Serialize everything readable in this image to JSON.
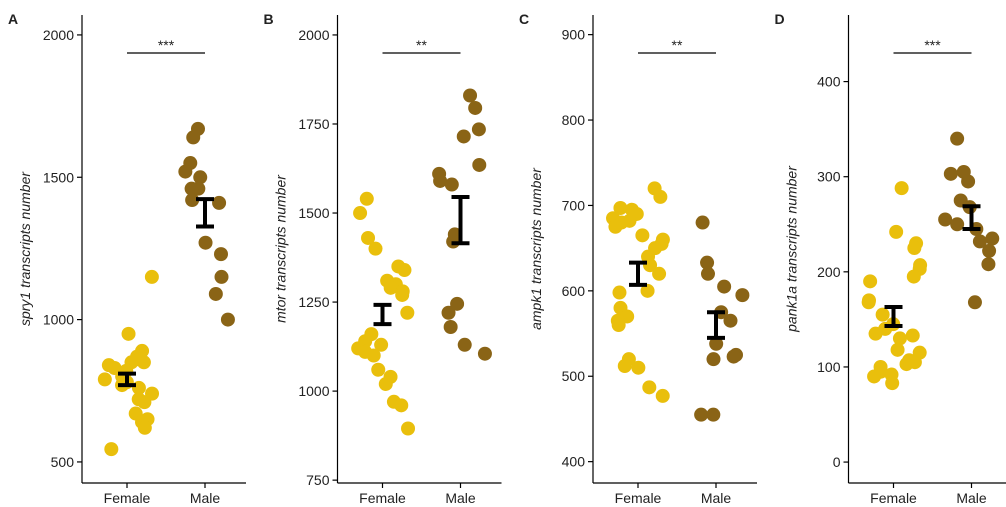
{
  "chart_data": [
    {
      "type": "strip",
      "panel": "A",
      "ylabel": "spry1 transcripts number",
      "categories": [
        "Female",
        "Male"
      ],
      "colors": [
        "#e9bf0c",
        "#8a6416"
      ],
      "values": [
        [
          1150,
          950,
          890,
          870,
          860,
          850,
          850,
          840,
          830,
          820,
          800,
          790,
          780,
          770,
          760,
          740,
          720,
          710,
          670,
          650,
          640,
          620,
          545
        ],
        [
          1670,
          1640,
          1550,
          1520,
          1500,
          1460,
          1460,
          1420,
          1410,
          1270,
          1230,
          1150,
          1090,
          1000
        ]
      ],
      "means": [
        790,
        1375
      ],
      "errors": [
        20,
        48
      ],
      "significance": "***",
      "ylim": [
        426,
        2070
      ],
      "yticks": [
        500,
        1000,
        1500,
        2000
      ]
    },
    {
      "type": "strip",
      "panel": "B",
      "ylabel": "mtor transcripts number",
      "categories": [
        "Female",
        "Male"
      ],
      "colors": [
        "#e9bf0c",
        "#8a6416"
      ],
      "values": [
        [
          1540,
          1500,
          1430,
          1400,
          1350,
          1340,
          1310,
          1300,
          1290,
          1280,
          1270,
          1220,
          1160,
          1140,
          1130,
          1120,
          1110,
          1100,
          1060,
          1040,
          1020,
          970,
          960,
          895
        ],
        [
          1830,
          1795,
          1735,
          1715,
          1635,
          1610,
          1590,
          1580,
          1440,
          1420,
          1245,
          1220,
          1180,
          1130,
          1105
        ]
      ],
      "means": [
        1215,
        1480
      ],
      "errors": [
        27,
        65
      ],
      "significance": "**",
      "ylim": [
        742,
        2056
      ],
      "yticks": [
        750,
        1000,
        1250,
        1500,
        1750,
        2000
      ]
    },
    {
      "type": "strip",
      "panel": "C",
      "ylabel": "ampk1 transcripts number",
      "categories": [
        "Female",
        "Male"
      ],
      "colors": [
        "#e9bf0c",
        "#8a6416"
      ],
      "values": [
        [
          720,
          710,
          697,
          695,
          690,
          685,
          682,
          680,
          675,
          665,
          660,
          655,
          650,
          640,
          630,
          620,
          600,
          598,
          580,
          570,
          565,
          560,
          520,
          512,
          510,
          487,
          477
        ],
        [
          680,
          633,
          620,
          605,
          595,
          575,
          565,
          538,
          525,
          523,
          520,
          455,
          455
        ]
      ],
      "means": [
        620,
        560
      ],
      "errors": [
        13,
        15
      ],
      "significance": "**",
      "ylim": [
        375,
        923
      ],
      "yticks": [
        400,
        500,
        600,
        700,
        800,
        900
      ]
    },
    {
      "type": "strip",
      "panel": "D",
      "ylabel": "pank1a transcripts number",
      "categories": [
        "Female",
        "Male"
      ],
      "colors": [
        "#e9bf0c",
        "#8a6416"
      ],
      "values": [
        [
          288,
          242,
          230,
          225,
          207,
          203,
          195,
          190,
          170,
          168,
          155,
          145,
          140,
          135,
          133,
          130,
          118,
          115,
          107,
          105,
          105,
          103,
          100,
          95,
          92,
          90,
          83
        ],
        [
          340,
          305,
          303,
          295,
          275,
          268,
          255,
          250,
          245,
          235,
          232,
          222,
          208,
          168
        ]
      ],
      "means": [
        153,
        257
      ],
      "errors": [
        10,
        12
      ],
      "significance": "***",
      "ylim": [
        -22,
        470
      ],
      "yticks": [
        0,
        100,
        200,
        300,
        400
      ]
    }
  ]
}
